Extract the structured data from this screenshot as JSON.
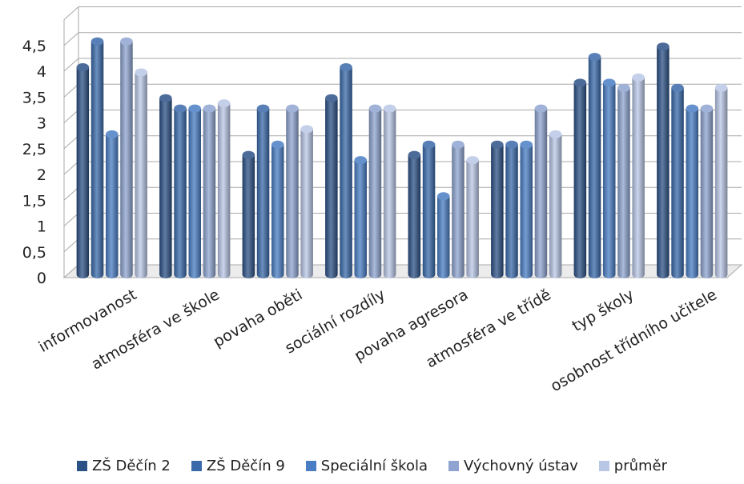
{
  "chart_data": {
    "type": "bar",
    "title": "",
    "xlabel": "",
    "ylabel": "",
    "ylim": [
      0,
      5
    ],
    "yticks": [
      "0",
      "0,5",
      "1",
      "1,5",
      "2",
      "2,5",
      "3",
      "3,5",
      "4",
      "4,5"
    ],
    "grid": true,
    "legend_position": "bottom",
    "categories": [
      "informovanost",
      "atmosféra ve škole",
      "povaha oběti",
      "sociální rozdíly",
      "povaha agresora",
      "atmosféra ve třídě",
      "typ školy",
      "osobnost třídního učitele"
    ],
    "series": [
      {
        "name": "ZŠ Děčín 2",
        "color": "#2c5186",
        "values": [
          4.0,
          3.4,
          2.3,
          3.4,
          2.3,
          2.5,
          3.7,
          4.4
        ]
      },
      {
        "name": "ZŠ Děčín 9",
        "color": "#3a6aaa",
        "values": [
          4.5,
          3.2,
          3.2,
          4.0,
          2.5,
          2.5,
          4.2,
          3.6
        ]
      },
      {
        "name": "Speciální škola",
        "color": "#4a7ec4",
        "values": [
          2.7,
          3.2,
          2.5,
          2.2,
          1.5,
          2.5,
          3.7,
          3.2
        ]
      },
      {
        "name": "Výchovný ústav",
        "color": "#8fa4d0",
        "values": [
          4.5,
          3.2,
          3.2,
          3.2,
          2.5,
          3.2,
          3.6,
          3.2
        ]
      },
      {
        "name": "průměr",
        "color": "#b9c7e6",
        "values": [
          3.9,
          3.3,
          2.8,
          3.2,
          2.2,
          2.7,
          3.8,
          3.6
        ]
      }
    ]
  }
}
